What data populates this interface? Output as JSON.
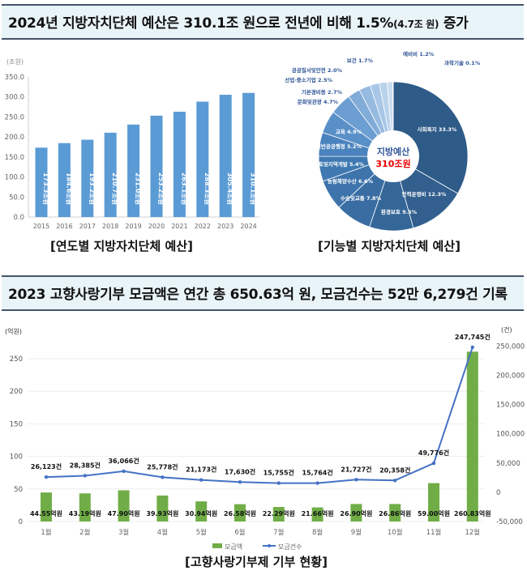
{
  "section1": {
    "title_main": "2024년 지방자치단체 예산은 310.1조 원으로 전년에 비해 1.5%",
    "title_small": "(4.7조 원)",
    "title_end": " 증가"
  },
  "section2": {
    "title": "2023 고향사랑기부 모금액은 연간 총 650.63억 원, 모금건수는 52만 6,279건 기록"
  },
  "colors": {
    "bar": "#5b9bd5",
    "green": "#70ad47",
    "line": "#4472c4",
    "title_bg": "#e9f4f8",
    "border": "#44546a"
  },
  "chart_data": [
    {
      "type": "bar",
      "title": "[연도별 지방자치단체 예산]",
      "ylabel": "(조원)",
      "ylim": [
        0,
        350
      ],
      "yticks": [
        "0.0",
        "50.0",
        "100.0",
        "150.0",
        "200.0",
        "250.0",
        "300.0",
        "350.0"
      ],
      "categories": [
        "2015",
        "2016",
        "2017",
        "2018",
        "2019",
        "2020",
        "2021",
        "2022",
        "2023",
        "2024"
      ],
      "values": [
        173.3,
        184.6,
        193.2,
        210.7,
        231.0,
        253.2,
        263.1,
        288.3,
        305.4,
        310.1
      ],
      "labels": [
        "173.3조원",
        "184.6조원",
        "193.2조원",
        "210.7조원",
        "231.0조원",
        "253.2조원",
        "263.1조원",
        "288.3조원",
        "305.4조원",
        "310.1조원"
      ]
    },
    {
      "type": "pie",
      "title": "[기능별 지방자치단체 예산]",
      "center_title": "지방예산",
      "center_value": "310조원",
      "slices": [
        {
          "name": "사회복지",
          "value": 33.3,
          "label": "사회복지 33.3%"
        },
        {
          "name": "인력운영비",
          "value": 12.3,
          "label": "인력운영비 12.3%"
        },
        {
          "name": "환경보호",
          "value": 9.5,
          "label": "환경보호 9.5%"
        },
        {
          "name": "수송및교통",
          "value": 7.8,
          "label": "수송및교통 7.8%"
        },
        {
          "name": "농림해양수산",
          "value": 6.6,
          "label": "농림해양수산 6.6%"
        },
        {
          "name": "국토및지역개발",
          "value": 5.4,
          "label": "국토및지역개발 5.4%"
        },
        {
          "name": "일반공공행정",
          "value": 5.2,
          "label": "일반공공행정 5.2%"
        },
        {
          "name": "교육",
          "value": 4.9,
          "label": "교육 4.9%"
        },
        {
          "name": "문화및관광",
          "value": 4.7,
          "label": "문화및관광 4.7%"
        },
        {
          "name": "기본경비등",
          "value": 2.7,
          "label": "기본경비등 2.7%"
        },
        {
          "name": "산업·중소기업",
          "value": 2.5,
          "label": "산업·중소기업 2.5%"
        },
        {
          "name": "공공질서및안전",
          "value": 2.0,
          "label": "공공질서및안전 2.0%"
        },
        {
          "name": "보건",
          "value": 1.7,
          "label": "보건 1.7%"
        },
        {
          "name": "예비비",
          "value": 1.2,
          "label": "예비비 1.2%"
        },
        {
          "name": "과학기술",
          "value": 0.1,
          "label": "과학기술 0.1%"
        }
      ]
    },
    {
      "type": "bar+line",
      "title": "[고향사랑기부제 기부 현황]",
      "ylabel_left": "(억원)",
      "ylabel_right": "(건)",
      "yticks_left": [
        "0",
        "50",
        "100",
        "150",
        "200",
        "250"
      ],
      "yticks_right": [
        "-50,000",
        "0",
        "50,000",
        "100,000",
        "150,000",
        "200,000",
        "250,000"
      ],
      "categories": [
        "1월",
        "2월",
        "3월",
        "4월",
        "5월",
        "6월",
        "7월",
        "8월",
        "9월",
        "10월",
        "11월",
        "12월"
      ],
      "series": [
        {
          "name": "모금액",
          "type": "bar",
          "axis": "left",
          "values": [
            44.55,
            43.19,
            47.9,
            39.93,
            30.94,
            26.58,
            22.29,
            21.66,
            26.9,
            26.86,
            59.0,
            260.83
          ],
          "labels": [
            "44.55억원",
            "43.19억원",
            "47.90억원",
            "39.93억원",
            "30.94억원",
            "26.58억원",
            "22.29억원",
            "21.66억원",
            "26.90억원",
            "26.86억원",
            "59.00억원",
            "260.83억원"
          ]
        },
        {
          "name": "모금건수",
          "type": "line",
          "axis": "right",
          "values": [
            26123,
            28385,
            36066,
            25778,
            21173,
            17630,
            15755,
            15764,
            21727,
            20358,
            49776,
            247745
          ],
          "labels": [
            "26,123건",
            "28,385건",
            "36,066건",
            "25,778건",
            "21,173건",
            "17,630건",
            "15,755건",
            "15,764건",
            "21,727건",
            "20,358건",
            "49,776건",
            "247,745건"
          ]
        }
      ]
    }
  ]
}
